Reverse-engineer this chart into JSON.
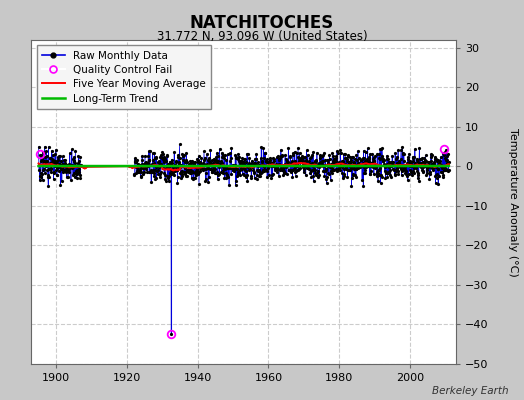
{
  "title": "NATCHITOCHES",
  "subtitle": "31.772 N, 93.096 W (United States)",
  "ylabel_right": "Temperature Anomaly (°C)",
  "credit": "Berkeley Earth",
  "xlim": [
    1893,
    2013
  ],
  "ylim": [
    -50,
    32
  ],
  "yticks": [
    -50,
    -40,
    -30,
    -20,
    -10,
    0,
    10,
    20,
    30
  ],
  "xticks": [
    1900,
    1920,
    1940,
    1960,
    1980,
    2000
  ],
  "bg_color": "#c8c8c8",
  "plot_bg_color": "#ffffff",
  "grid_color": "#cccccc",
  "seed": 42,
  "start_year": 1895,
  "end_year": 2011,
  "outlier_year": 1932.5,
  "outlier_value": -42.5,
  "qc_fail_years": [
    1895.5,
    1932.5,
    2009.5
  ],
  "qc_fail_values": [
    3.2,
    -42.5,
    4.5
  ],
  "long_term_trend_value": 0.1
}
